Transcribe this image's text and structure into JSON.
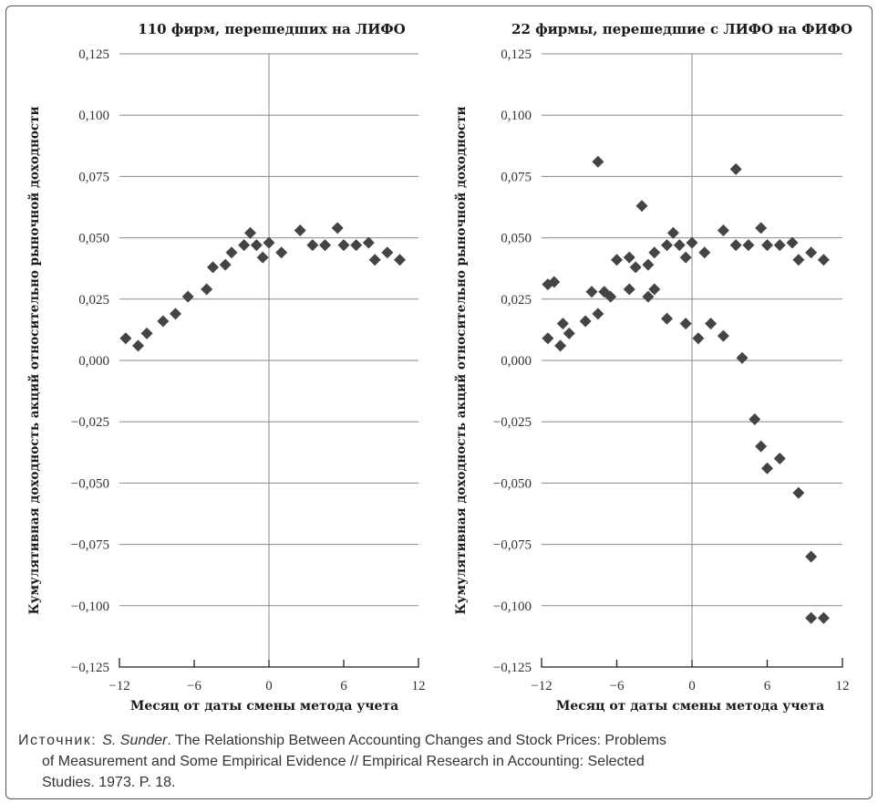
{
  "source": {
    "lead": "Источник: ",
    "author": "S. Sunder",
    "line1_rest": ". The Relationship Between Accounting Changes and Stock Prices: Problems",
    "line2": "of Measurement and Some Empirical Evidence // Empirical Research in Accounting: Selected",
    "line3": "Studies. 1973. P. 18."
  },
  "chart_data": [
    {
      "type": "scatter",
      "title": "110 фирм, перешедших на ЛИФО",
      "xlabel": "Месяц от даты смены метода учета",
      "ylabel": "Кумулятивная доходность акций относительно рыночной доходности",
      "xlim": [
        -12,
        12
      ],
      "ylim": [
        -0.125,
        0.125
      ],
      "xticks": [
        "-12",
        "-6",
        "0",
        "6",
        "12"
      ],
      "yticks": [
        "0,125",
        "0,100",
        "0,075",
        "0,050",
        "0,025",
        "0,000",
        "-0,025",
        "-0,050",
        "-0,075",
        "-0,100",
        "-0,125"
      ],
      "grid": true,
      "series": [
        {
          "points": [
            [
              -11.5,
              0.009
            ],
            [
              -10.5,
              0.006
            ],
            [
              -9.8,
              0.011
            ],
            [
              -8.5,
              0.016
            ],
            [
              -7.5,
              0.019
            ],
            [
              -6.5,
              0.026
            ],
            [
              -5.0,
              0.029
            ],
            [
              -4.5,
              0.038
            ],
            [
              -3.5,
              0.039
            ],
            [
              -3.0,
              0.044
            ],
            [
              -2.0,
              0.047
            ],
            [
              -1.5,
              0.052
            ],
            [
              -1.0,
              0.047
            ],
            [
              -0.5,
              0.042
            ],
            [
              0.0,
              0.048
            ],
            [
              1.0,
              0.044
            ],
            [
              2.5,
              0.053
            ],
            [
              3.5,
              0.047
            ],
            [
              4.5,
              0.047
            ],
            [
              5.5,
              0.054
            ],
            [
              6.0,
              0.047
            ],
            [
              7.0,
              0.047
            ],
            [
              8.0,
              0.048
            ],
            [
              8.5,
              0.041
            ],
            [
              9.5,
              0.044
            ],
            [
              10.5,
              0.041
            ]
          ]
        }
      ]
    },
    {
      "type": "scatter",
      "title": "22 фирмы, перешедшие с ЛИФО на ФИФО",
      "xlabel": "Месяц от даты смены метода учета",
      "ylabel": "Кумулятивная доходность акций относительно рыночной доходности",
      "xlim": [
        -12,
        12
      ],
      "ylim": [
        -0.125,
        0.125
      ],
      "xticks": [
        "-12",
        "-6",
        "0",
        "6",
        "12"
      ],
      "yticks": [
        "0,125",
        "0,100",
        "0,075",
        "0,050",
        "0,025",
        "0,000",
        "-0,025",
        "-0,050",
        "-0,075",
        "-0,100",
        "-0,125"
      ],
      "grid": true,
      "series": [
        {
          "points": [
            [
              -11.5,
              0.009
            ],
            [
              -10.5,
              0.006
            ],
            [
              -9.8,
              0.011
            ],
            [
              -8.5,
              0.016
            ],
            [
              -7.5,
              0.019
            ],
            [
              -6.5,
              0.026
            ],
            [
              -5.0,
              0.029
            ],
            [
              -4.5,
              0.038
            ],
            [
              -3.5,
              0.039
            ],
            [
              -3.0,
              0.044
            ],
            [
              -2.0,
              0.047
            ],
            [
              -1.5,
              0.052
            ],
            [
              -1.0,
              0.047
            ],
            [
              -0.5,
              0.042
            ],
            [
              0.0,
              0.048
            ],
            [
              1.0,
              0.044
            ],
            [
              2.5,
              0.053
            ],
            [
              3.5,
              0.047
            ],
            [
              4.5,
              0.047
            ],
            [
              5.5,
              0.054
            ],
            [
              6.0,
              0.047
            ],
            [
              7.0,
              0.047
            ],
            [
              8.0,
              0.048
            ],
            [
              8.5,
              0.041
            ],
            [
              9.5,
              0.044
            ],
            [
              10.5,
              0.041
            ]
          ]
        },
        {
          "points": [
            [
              -11.5,
              0.031
            ],
            [
              -11.0,
              0.032
            ],
            [
              -10.3,
              0.015
            ],
            [
              -8.0,
              0.028
            ],
            [
              -7.5,
              0.081
            ],
            [
              -7.0,
              0.028
            ],
            [
              -6.0,
              0.041
            ],
            [
              -5.0,
              0.042
            ],
            [
              -4.0,
              0.063
            ],
            [
              -3.5,
              0.026
            ],
            [
              -3.0,
              0.029
            ],
            [
              -2.0,
              0.017
            ],
            [
              -0.5,
              0.015
            ],
            [
              0.5,
              0.009
            ],
            [
              1.5,
              0.015
            ],
            [
              2.5,
              0.01
            ],
            [
              3.5,
              0.078
            ],
            [
              4.0,
              0.001
            ],
            [
              5.0,
              -0.024
            ],
            [
              5.5,
              -0.035
            ],
            [
              6.0,
              -0.044
            ],
            [
              7.0,
              -0.04
            ],
            [
              8.5,
              -0.054
            ],
            [
              9.5,
              -0.08
            ],
            [
              9.5,
              -0.105
            ],
            [
              10.5,
              -0.105
            ]
          ]
        }
      ]
    }
  ]
}
